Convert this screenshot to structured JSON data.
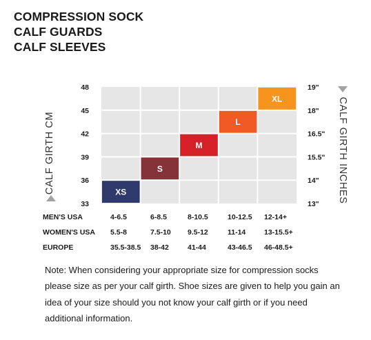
{
  "title_lines": [
    "COMPRESSION SOCK",
    "CALF GUARDS",
    "CALF SLEEVES"
  ],
  "chart_data": {
    "type": "bar",
    "left_axis": {
      "label": "CALF GIRTH CM",
      "ticks": [
        "33",
        "36",
        "39",
        "42",
        "45",
        "48"
      ],
      "range": [
        33,
        48
      ]
    },
    "right_axis": {
      "label": "CALF GIRTH INCHES",
      "ticks": [
        "13\"",
        "14\"",
        "15.5\"",
        "16.5\"",
        "18\"",
        "19\""
      ]
    },
    "grid": true,
    "columns": 5,
    "sizes": [
      {
        "label": "XS",
        "cm": [
          33,
          36
        ],
        "color": "#2e3a6b"
      },
      {
        "label": "S",
        "cm": [
          36,
          39
        ],
        "color": "#843438"
      },
      {
        "label": "M",
        "cm": [
          39,
          42
        ],
        "color": "#d62027"
      },
      {
        "label": "L",
        "cm": [
          42,
          45
        ],
        "color": "#f15a24"
      },
      {
        "label": "XL",
        "cm": [
          45,
          48
        ],
        "color": "#f7941d"
      }
    ]
  },
  "size_table": [
    {
      "label": "MEN'S USA",
      "values": [
        "4-6.5",
        "6-8.5",
        "8-10.5",
        "10-12.5",
        "12-14+"
      ]
    },
    {
      "label": "WOMEN'S USA",
      "values": [
        "5.5-8",
        "7.5-10",
        "9.5-12",
        "11-14",
        "13-15.5+"
      ]
    },
    {
      "label": "EUROPE",
      "values": [
        "35.5-38.5",
        "38-42",
        "41-44",
        "43-46.5",
        "46-48.5+"
      ]
    }
  ],
  "note": "Note: When considering your appropriate size for compression socks please size as per your calf girth. Shoe sizes are given to help you gain an idea of your size should you not know your calf girth or if you need additional information."
}
